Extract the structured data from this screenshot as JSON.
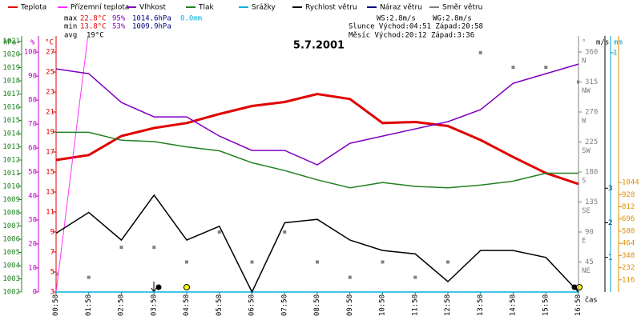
{
  "chart_data": {
    "type": "line",
    "title": "5.7.2001",
    "x_label": "čas",
    "x": [
      "00:50",
      "01:50",
      "02:50",
      "03:50",
      "04:50",
      "05:50",
      "06:50",
      "07:50",
      "08:50",
      "09:50",
      "10:50",
      "11:50",
      "12:50",
      "13:50",
      "14:50",
      "15:50",
      "16:50"
    ],
    "axes": [
      {
        "label": "hPa",
        "color": "#208020",
        "side": "left",
        "ylim": [
          1002,
          1021.4
        ],
        "yticks": [
          1002,
          1003,
          1004,
          1005,
          1006,
          1007,
          1008,
          1009,
          1010,
          1011,
          1012,
          1013,
          1014,
          1015,
          1016,
          1017,
          1018,
          1019,
          1020,
          1021
        ]
      },
      {
        "label": "%",
        "color": "#c000c0",
        "side": "left",
        "ylim": [
          0,
          106.7
        ],
        "yticks": [
          0,
          10,
          20,
          30,
          40,
          50,
          60,
          70,
          80,
          90,
          100
        ]
      },
      {
        "label": "°C",
        "color": "#e00000",
        "side": "left",
        "ylim": [
          3,
          28.6
        ],
        "yticks": [
          3,
          5,
          7,
          9,
          11,
          13,
          15,
          17,
          19,
          21,
          23,
          25,
          27
        ]
      },
      {
        "label": "°",
        "color": "#808080",
        "side": "right",
        "ylim": [
          0,
          384
        ],
        "yticks": [
          45,
          90,
          135,
          180,
          225,
          270,
          315,
          360
        ],
        "direction_labels": [
          "NE",
          "E",
          "SE",
          "S",
          "SW",
          "W",
          "NW",
          "N"
        ]
      },
      {
        "label": "m/s",
        "color": "#000000",
        "side": "right",
        "ylim": [
          0,
          7.4
        ],
        "yticks": [
          1,
          2,
          3
        ]
      },
      {
        "label": "mm",
        "color": "#00a0d0",
        "side": "right",
        "ylim": [
          0,
          1.07
        ],
        "yticks": [
          1
        ]
      },
      {
        "color": "#e09000",
        "side": "right",
        "ylim": [
          0,
          2440
        ],
        "yticks": [
          116,
          232,
          348,
          464,
          580,
          696,
          812,
          928,
          1044
        ]
      }
    ],
    "series": [
      {
        "name": "Teplota",
        "color": "#e00000",
        "axis": 2,
        "width": 3,
        "values": [
          16.2,
          16.7,
          18.6,
          19.4,
          19.9,
          20.8,
          21.6,
          22.0,
          22.8,
          22.3,
          19.9,
          20.0,
          19.6,
          18.2,
          16.5,
          14.9,
          13.8
        ]
      },
      {
        "name": "Přízemní teplota",
        "color": "#ff30ff",
        "axis": 2,
        "width": 1,
        "values": [
          3,
          29.3,
          null,
          null,
          null,
          null,
          null,
          null,
          null,
          null,
          null,
          null,
          null,
          null,
          null,
          null,
          null
        ]
      },
      {
        "name": "Vlhkost",
        "color": "#8000c0",
        "axis": 1,
        "width": 1.5,
        "values": [
          93,
          91,
          79,
          73,
          73,
          65,
          59,
          59,
          53,
          62,
          65,
          68,
          71,
          76,
          87,
          91,
          95
        ]
      },
      {
        "name": "Tlak",
        "color": "#208020",
        "axis": 0,
        "width": 1.5,
        "values": [
          1014.1,
          1014.1,
          1013.5,
          1013.4,
          1013.0,
          1012.7,
          1011.8,
          1011.2,
          1010.5,
          1009.9,
          1010.3,
          1010.0,
          1009.9,
          1010.1,
          1010.4,
          1011.0,
          1011.0
        ]
      },
      {
        "name": "Srážky",
        "color": "#00b0e0",
        "axis": 5,
        "width": 1.5,
        "values": [
          0,
          0,
          0,
          0,
          0,
          0,
          0,
          0,
          0,
          0,
          0,
          0,
          0,
          0,
          0,
          0,
          0
        ]
      },
      {
        "name": "Rychlost větru",
        "color": "#000000",
        "axis": 4,
        "width": 1.5,
        "values": [
          1.7,
          2.3,
          1.5,
          2.8,
          1.5,
          1.9,
          0,
          2.0,
          2.1,
          1.5,
          1.2,
          1.1,
          0.3,
          1.2,
          1.2,
          1.0,
          0
        ]
      },
      {
        "name": "Náraz větru",
        "color": "#000080",
        "axis": 4,
        "width": 1.5
      },
      {
        "name": "Směr větru",
        "color": "#808080",
        "axis": 3,
        "marker": "square",
        "values": [
          27,
          22,
          67,
          67,
          45,
          90,
          45,
          90,
          45,
          22,
          45,
          22,
          45,
          359,
          337,
          337,
          315
        ]
      }
    ],
    "stats": {
      "max": {
        "label": "max",
        "temperature": "22.8°C",
        "humidity": "95%",
        "pressure": "1014.6hPa",
        "rain": "0.0mm"
      },
      "min": {
        "label": "min",
        "temperature": "13.8°C",
        "humidity": "53%",
        "pressure": "1009.9hPa"
      },
      "avg": {
        "label": "avg",
        "temperature": "19°C"
      }
    },
    "info": {
      "ws": "WS:2.8m/s",
      "wg": "WG:2.8m/s",
      "sun": "Slunce Východ:04:51 Západ:20:58",
      "moon": "Měsíc Východ:20:12 Západ:3:36"
    }
  }
}
